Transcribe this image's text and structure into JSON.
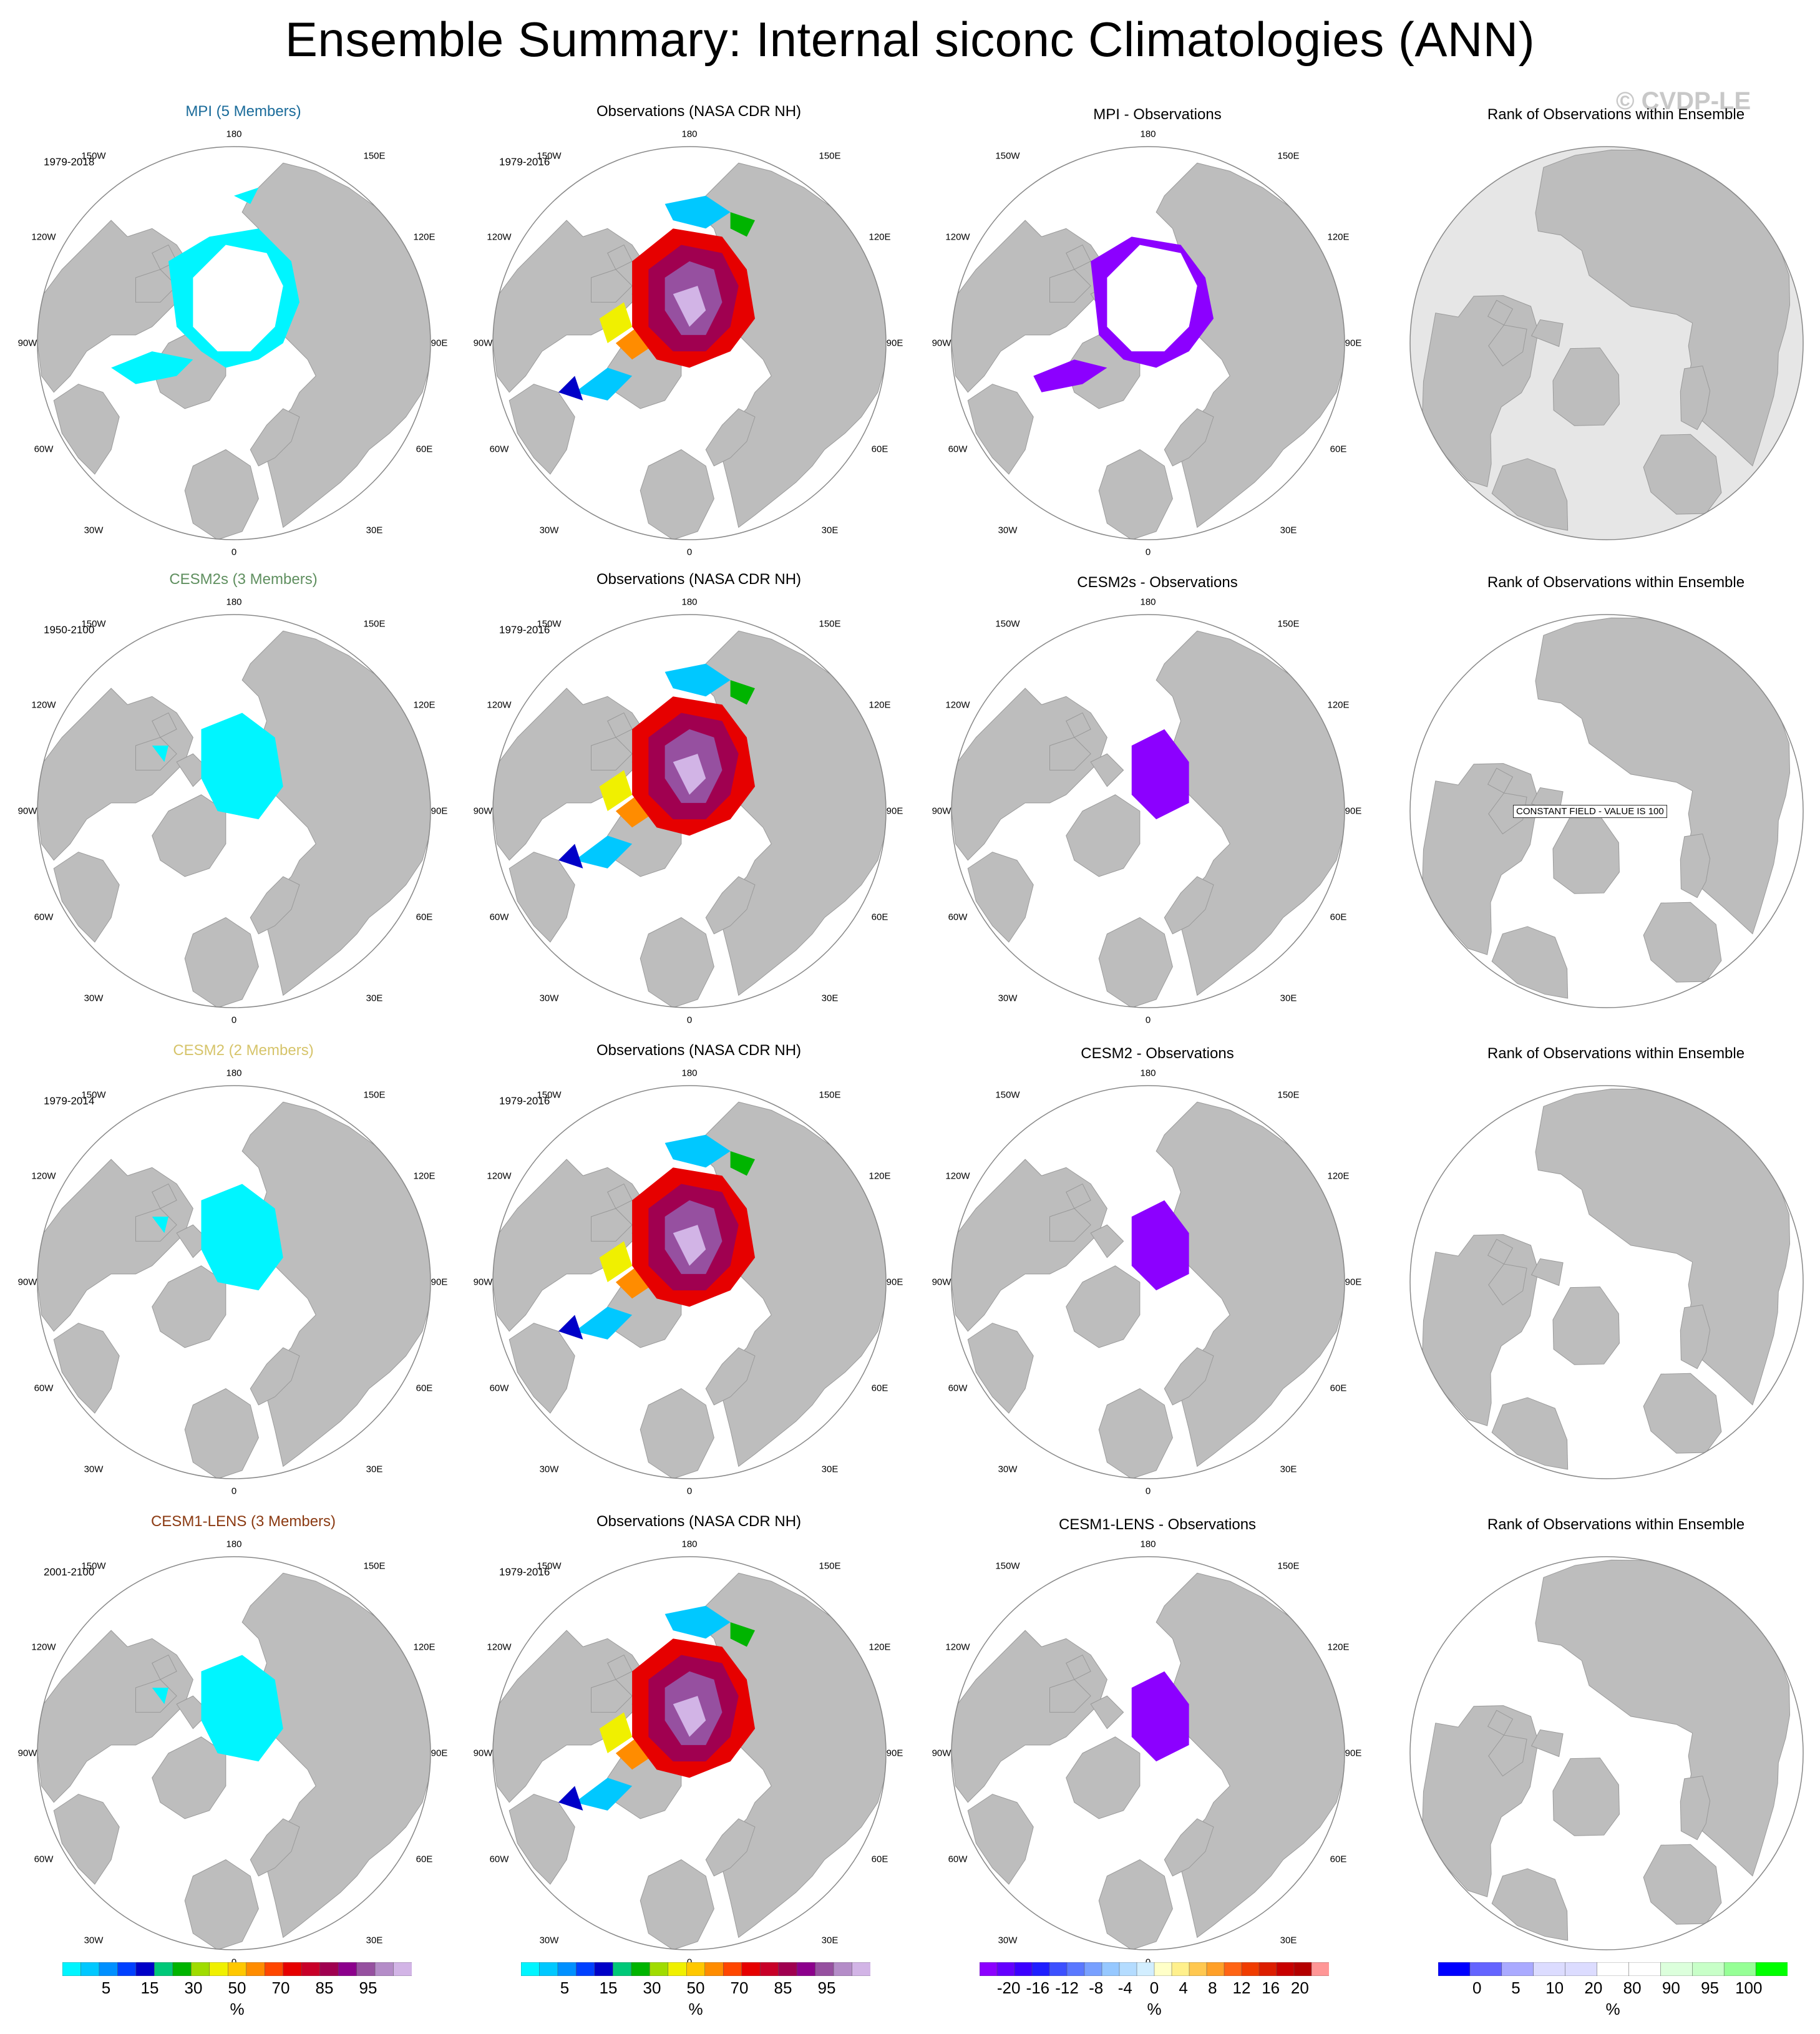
{
  "page": {
    "title": "Ensemble Summary: Internal siconc Climatologies (ANN)",
    "watermark": "© CVDP-LE"
  },
  "colors": {
    "land": "#bdbdbd",
    "ice_free": "#ffffff",
    "circle_border": "#888888",
    "mpi_title": "#1a6b9a",
    "cesm2s_title": "#5f8f5f",
    "cesm2_title": "#d6c46a",
    "cesm1lens_title": "#8b3a12",
    "rank_bg_row1": "#e6e6e6"
  },
  "map_labels": {
    "top": "180",
    "bottom": "0",
    "left": "90W",
    "right": "90E",
    "upper_left_outer": "120W",
    "upper_left_inner": "150W",
    "upper_right_inner": "150E",
    "upper_right_outer": "120E",
    "lower_left_outer": "60W",
    "lower_left_inner": "30W",
    "lower_right_inner": "30E",
    "lower_right_outer": "60E"
  },
  "rows": [
    {
      "ensemble": {
        "title": "MPI (5 Members)",
        "period": "1979-2018",
        "color_key": "mpi_title"
      },
      "obs": {
        "title": "Observations (NASA CDR NH)",
        "period": "1979-2016"
      },
      "diff": {
        "title": "MPI - Observations"
      },
      "rank": {
        "title": "Rank of Observations within Ensemble",
        "note": ""
      }
    },
    {
      "ensemble": {
        "title": "CESM2s (3 Members)",
        "period": "1950-2100",
        "color_key": "cesm2s_title"
      },
      "obs": {
        "title": "Observations (NASA CDR NH)",
        "period": "1979-2016"
      },
      "diff": {
        "title": "CESM2s - Observations"
      },
      "rank": {
        "title": "Rank of Observations within Ensemble",
        "note": "CONSTANT FIELD - VALUE IS 100"
      }
    },
    {
      "ensemble": {
        "title": "CESM2 (2 Members)",
        "period": "1979-2014",
        "color_key": "cesm2_title"
      },
      "obs": {
        "title": "Observations (NASA CDR NH)",
        "period": "1979-2016"
      },
      "diff": {
        "title": "CESM2 - Observations"
      },
      "rank": {
        "title": "Rank of Observations within Ensemble",
        "note": ""
      }
    },
    {
      "ensemble": {
        "title": "CESM1-LENS (3 Members)",
        "period": "2001-2100",
        "color_key": "cesm1lens_title"
      },
      "obs": {
        "title": "Observations (NASA CDR NH)",
        "period": "1979-2016"
      },
      "diff": {
        "title": "CESM1-LENS - Observations"
      },
      "rank": {
        "title": "Rank of Observations within Ensemble",
        "note": ""
      }
    }
  ],
  "colorbars": [
    {
      "name": "siconc",
      "unit": "%",
      "colors": [
        "#00f5ff",
        "#00c8ff",
        "#0090ff",
        "#0040ff",
        "#0000c8",
        "#00c878",
        "#00b400",
        "#a0dc00",
        "#f0f000",
        "#ffc800",
        "#ff8c00",
        "#ff4600",
        "#e60000",
        "#c80028",
        "#a00050",
        "#8c008c",
        "#9650a0",
        "#b48cc8",
        "#d2b4e6"
      ],
      "ticks": [
        "5",
        "15",
        "30",
        "50",
        "70",
        "85",
        "95"
      ]
    },
    {
      "name": "siconc-obs",
      "unit": "%",
      "colors": [
        "#00f5ff",
        "#00c8ff",
        "#0090ff",
        "#0040ff",
        "#0000c8",
        "#00c878",
        "#00b400",
        "#a0dc00",
        "#f0f000",
        "#ffc800",
        "#ff8c00",
        "#ff4600",
        "#e60000",
        "#c80028",
        "#a00050",
        "#8c008c",
        "#9650a0",
        "#b48cc8",
        "#d2b4e6"
      ],
      "ticks": [
        "5",
        "15",
        "30",
        "50",
        "70",
        "85",
        "95"
      ]
    },
    {
      "name": "difference",
      "unit": "%",
      "colors": [
        "#8c00ff",
        "#6400ff",
        "#3c00ff",
        "#1e1eff",
        "#3c50ff",
        "#5a78ff",
        "#78a0ff",
        "#96c8ff",
        "#b4dcff",
        "#d2eeff",
        "#ffffc8",
        "#fff08c",
        "#ffc850",
        "#ffa028",
        "#ff6414",
        "#f03c00",
        "#dc1e00",
        "#c80000",
        "#b40000",
        "#ff9696"
      ],
      "ticks": [
        "-20",
        "-16",
        "-12",
        "-8",
        "-4",
        "0",
        "4",
        "8",
        "12",
        "16",
        "20"
      ]
    },
    {
      "name": "rank",
      "unit": "%",
      "colors": [
        "#0000ff",
        "#6464ff",
        "#aaaaff",
        "#dcdcff",
        "#dcdcff",
        "#ffffff",
        "#ffffff",
        "#dcffdc",
        "#c8ffc8",
        "#96ff96",
        "#00ff00"
      ],
      "ticks": [
        "0",
        "5",
        "10",
        "20",
        "80",
        "90",
        "95",
        "100"
      ]
    }
  ]
}
